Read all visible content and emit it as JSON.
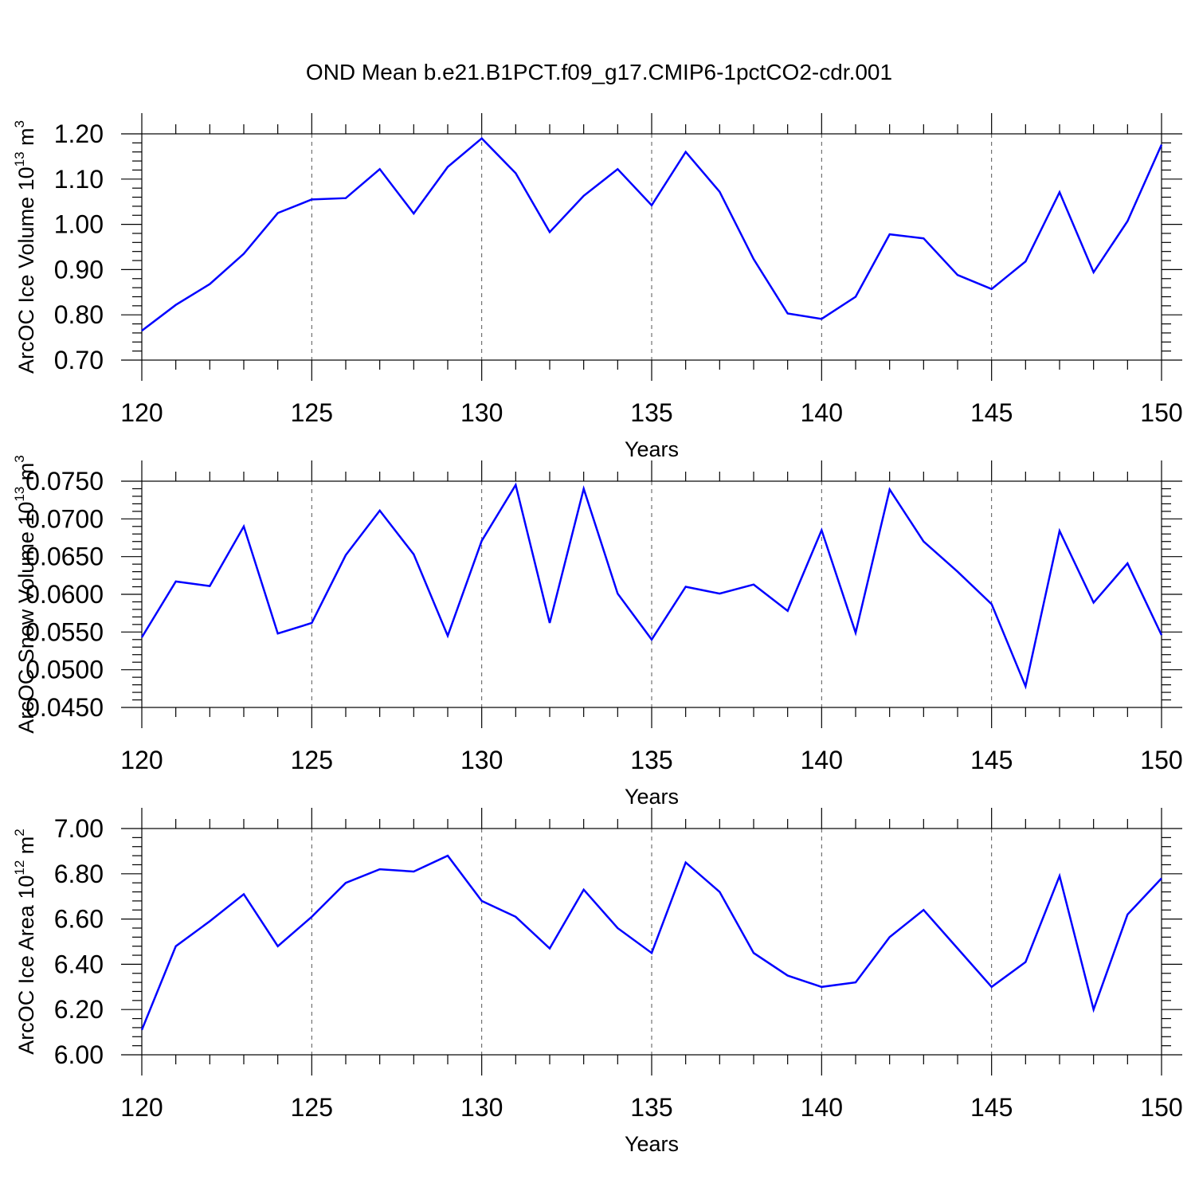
{
  "title": "OND Mean b.e21.B1PCT.f09_g17.CMIP6-1pctCO2-cdr.001",
  "colors": {
    "series": "#0000ff",
    "grid": "#555555",
    "axis": "#000000"
  },
  "chart_data": [
    {
      "type": "line",
      "name": "ice-volume",
      "ylabel": {
        "main": "ArcOC Ice Volume 10",
        "exp": "13",
        "unit": " m",
        "unit_exp": "3"
      },
      "xlabel": "Years",
      "xlim": [
        120,
        150
      ],
      "ylim": [
        0.7,
        1.2
      ],
      "yticks": [
        0.7,
        0.8,
        0.9,
        1.0,
        1.1,
        1.2
      ],
      "ytick_labels": [
        "0.70",
        "0.80",
        "0.90",
        "1.00",
        "1.10",
        "1.20"
      ],
      "xticks": [
        120,
        125,
        130,
        135,
        140,
        145,
        150
      ],
      "xtick_labels": [
        "120",
        "125",
        "130",
        "135",
        "140",
        "145",
        "150"
      ],
      "grid": "vertical dashed at major x ticks",
      "x": [
        120,
        121,
        122,
        123,
        124,
        125,
        126,
        127,
        128,
        129,
        130,
        131,
        132,
        133,
        134,
        135,
        136,
        137,
        138,
        139,
        140,
        141,
        142,
        143,
        144,
        145,
        146,
        147,
        148,
        149,
        150
      ],
      "values": [
        0.765,
        0.822,
        0.868,
        0.935,
        1.025,
        1.055,
        1.058,
        1.122,
        1.024,
        1.127,
        1.19,
        1.113,
        0.983,
        1.063,
        1.122,
        1.042,
        1.16,
        1.072,
        0.923,
        0.803,
        0.791,
        0.84,
        0.978,
        0.969,
        0.888,
        0.857,
        0.918,
        1.071,
        0.894,
        1.007,
        1.176
      ]
    },
    {
      "type": "line",
      "name": "snow-volume",
      "ylabel": {
        "main": "ArcOC Snow Volume 10",
        "exp": "13",
        "unit": " m",
        "unit_exp": "3"
      },
      "xlabel": "Years",
      "xlim": [
        120,
        150
      ],
      "ylim": [
        0.045,
        0.075
      ],
      "yticks": [
        0.045,
        0.05,
        0.055,
        0.06,
        0.065,
        0.07,
        0.075
      ],
      "ytick_labels": [
        "0.0450",
        "0.0500",
        "0.0550",
        "0.0600",
        "0.0650",
        "0.0700",
        "0.0750"
      ],
      "xticks": [
        120,
        125,
        130,
        135,
        140,
        145,
        150
      ],
      "xtick_labels": [
        "120",
        "125",
        "130",
        "135",
        "140",
        "145",
        "150"
      ],
      "grid": "vertical dashed at major x ticks",
      "x": [
        120,
        121,
        122,
        123,
        124,
        125,
        126,
        127,
        128,
        129,
        130,
        131,
        132,
        133,
        134,
        135,
        136,
        137,
        138,
        139,
        140,
        141,
        142,
        143,
        144,
        145,
        146,
        147,
        148,
        149,
        150
      ],
      "values": [
        0.0543,
        0.0617,
        0.0611,
        0.069,
        0.0548,
        0.0562,
        0.0652,
        0.0711,
        0.0653,
        0.0545,
        0.0671,
        0.0745,
        0.0562,
        0.074,
        0.0601,
        0.054,
        0.061,
        0.0601,
        0.0613,
        0.0578,
        0.0685,
        0.0549,
        0.0739,
        0.067,
        0.063,
        0.0587,
        0.0478,
        0.0684,
        0.0589,
        0.0641,
        0.0546
      ]
    },
    {
      "type": "line",
      "name": "ice-area",
      "ylabel": {
        "main": "ArcOC Ice Area 10",
        "exp": "12",
        "unit": " m",
        "unit_exp": "2"
      },
      "xlabel": "Years",
      "xlim": [
        120,
        150
      ],
      "ylim": [
        6.0,
        7.0
      ],
      "yticks": [
        6.0,
        6.2,
        6.4,
        6.6,
        6.8,
        7.0
      ],
      "ytick_labels": [
        "6.00",
        "6.20",
        "6.40",
        "6.60",
        "6.80",
        "7.00"
      ],
      "xticks": [
        120,
        125,
        130,
        135,
        140,
        145,
        150
      ],
      "xtick_labels": [
        "120",
        "125",
        "130",
        "135",
        "140",
        "145",
        "150"
      ],
      "grid": "vertical dashed at major x ticks",
      "x": [
        120,
        121,
        122,
        123,
        124,
        125,
        126,
        127,
        128,
        129,
        130,
        131,
        132,
        133,
        134,
        135,
        136,
        137,
        138,
        139,
        140,
        141,
        142,
        143,
        144,
        145,
        146,
        147,
        148,
        149,
        150
      ],
      "values": [
        6.11,
        6.48,
        6.59,
        6.71,
        6.48,
        6.61,
        6.76,
        6.82,
        6.81,
        6.88,
        6.68,
        6.61,
        6.47,
        6.73,
        6.56,
        6.45,
        6.85,
        6.72,
        6.45,
        6.35,
        6.3,
        6.32,
        6.52,
        6.64,
        6.47,
        6.3,
        6.41,
        6.79,
        6.2,
        6.62,
        6.78
      ]
    }
  ]
}
